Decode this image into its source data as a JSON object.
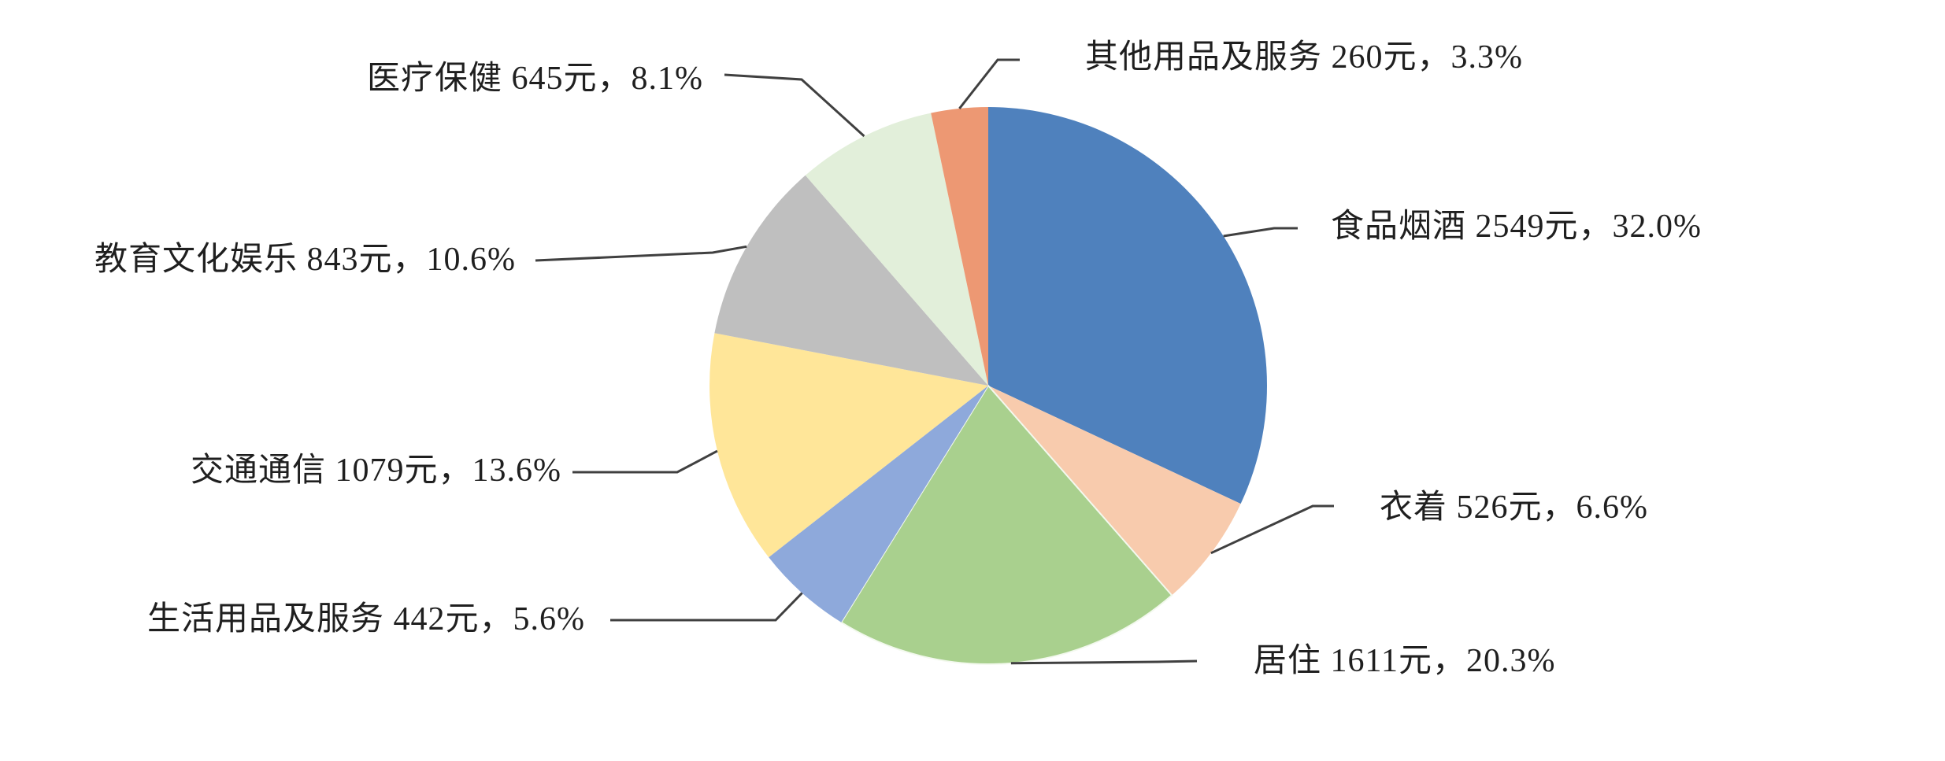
{
  "chart_data": {
    "type": "pie",
    "title": "",
    "unit": "元",
    "start_angle_deg": 0,
    "direction": "clockwise",
    "legend": "none (callout labels with leader lines)",
    "background": "#FFFFFF",
    "leader_line_color": "#404040",
    "text_color": "#1F1F1F",
    "slices": [
      {
        "name": "食品烟酒",
        "value_yuan": 2549,
        "pct": 32.0,
        "color": "#4F81BD",
        "label": "食品烟酒 2549元，32.0%"
      },
      {
        "name": "衣着",
        "value_yuan": 526,
        "pct": 6.6,
        "color": "#F8CBAD",
        "label": "衣着 526元，6.6%"
      },
      {
        "name": "居住",
        "value_yuan": 1611,
        "pct": 20.3,
        "color": "#A9D08E",
        "label": "居住 1611元，20.3%"
      },
      {
        "name": "生活用品及服务",
        "value_yuan": 442,
        "pct": 5.6,
        "color": "#8EA9DB",
        "label": "生活用品及服务 442元，5.6%"
      },
      {
        "name": "交通通信",
        "value_yuan": 1079,
        "pct": 13.6,
        "color": "#FFE699",
        "label": "交通通信 1079元，13.6%"
      },
      {
        "name": "教育文化娱乐",
        "value_yuan": 843,
        "pct": 10.6,
        "color": "#BFBFBF",
        "label": "教育文化娱乐 843元，10.6%"
      },
      {
        "name": "医疗保健",
        "value_yuan": 645,
        "pct": 8.1,
        "color": "#E2EFDA",
        "label": "医疗保健 645元，8.1%"
      },
      {
        "name": "其他用品及服务",
        "value_yuan": 260,
        "pct": 3.3,
        "color": "#ED9873",
        "label": "其他用品及服务 260元，3.3%"
      }
    ]
  }
}
